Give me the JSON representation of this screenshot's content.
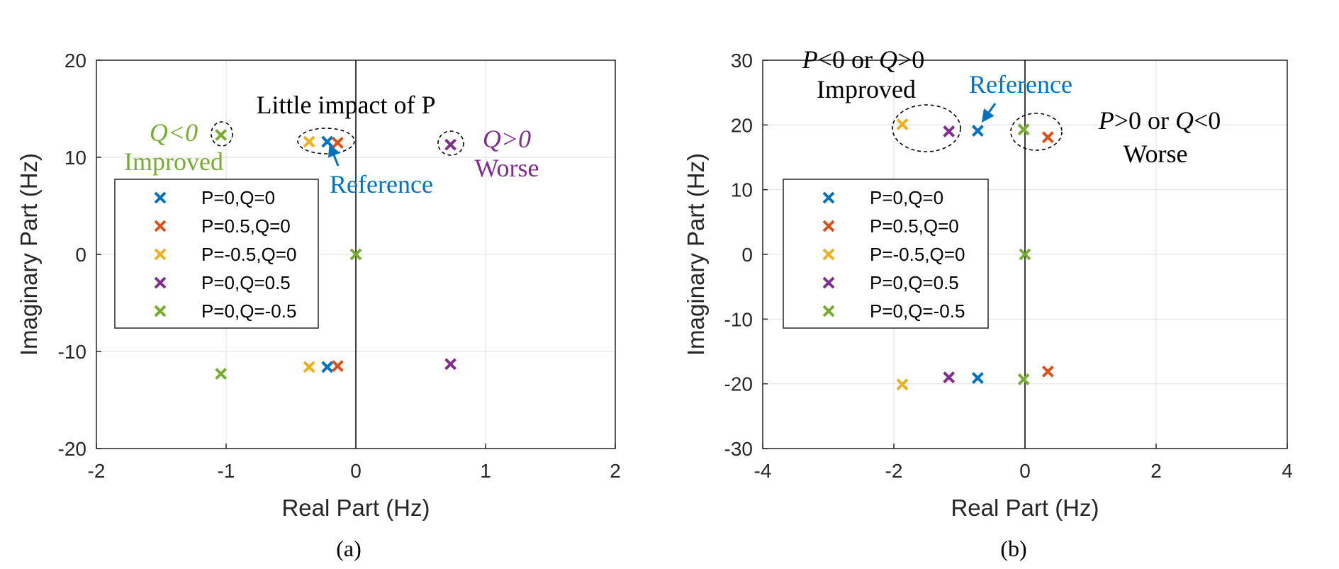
{
  "chart_data": [
    {
      "type": "scatter",
      "caption": "(a)",
      "xlabel": "Real Part (Hz)",
      "ylabel": "Imaginary Part (Hz)",
      "xlim": [
        -2,
        2
      ],
      "ylim": [
        -20,
        20
      ],
      "xticks": [
        "-2",
        "-1",
        "0",
        "1",
        "2"
      ],
      "yticks": [
        "-20",
        "-10",
        "0",
        "10",
        "20"
      ],
      "grid": true,
      "legend_position": "left",
      "series": [
        {
          "name": "P=0,Q=0",
          "color": "#0072BD",
          "points": [
            [
              -0.22,
              11.6
            ],
            [
              -0.22,
              -11.6
            ]
          ]
        },
        {
          "name": "P=0.5,Q=0",
          "color": "#D95319",
          "points": [
            [
              -0.14,
              11.5
            ],
            [
              -0.14,
              -11.5
            ]
          ]
        },
        {
          "name": "P=-0.5,Q=0",
          "color": "#EDB120",
          "points": [
            [
              -0.36,
              11.6
            ],
            [
              -0.36,
              -11.6
            ]
          ]
        },
        {
          "name": "P=0,Q=0.5",
          "color": "#7E2F8E",
          "points": [
            [
              0.73,
              11.3
            ],
            [
              0.73,
              -11.3
            ]
          ]
        },
        {
          "name": "P=0,Q=-0.5",
          "color": "#77AC30",
          "points": [
            [
              -1.04,
              12.3
            ],
            [
              -1.04,
              -12.3
            ],
            [
              0,
              0
            ]
          ]
        }
      ],
      "annotations": {
        "q_neg_line1": "Q<0",
        "q_neg_line2": "Improved",
        "little_impact": "Little impact of P",
        "reference": "Reference",
        "q_pos_line1": "Q>0",
        "q_pos_line2": "Worse"
      }
    },
    {
      "type": "scatter",
      "caption": "(b)",
      "xlabel": "Real Part (Hz)",
      "ylabel": "Imaginary Part (Hz)",
      "xlim": [
        -4,
        4
      ],
      "ylim": [
        -30,
        30
      ],
      "xticks": [
        "-4",
        "-2",
        "0",
        "2",
        "4"
      ],
      "yticks": [
        "-30",
        "-20",
        "-10",
        "0",
        "10",
        "20",
        "30"
      ],
      "grid": true,
      "legend_position": "left",
      "series": [
        {
          "name": "P=0,Q=0",
          "color": "#0072BD",
          "points": [
            [
              -0.72,
              19.1
            ],
            [
              -0.72,
              -19.1
            ]
          ]
        },
        {
          "name": "P=0.5,Q=0",
          "color": "#D95319",
          "points": [
            [
              0.35,
              18.1
            ],
            [
              0.35,
              -18.1
            ]
          ]
        },
        {
          "name": "P=-0.5,Q=0",
          "color": "#EDB120",
          "points": [
            [
              -1.87,
              20.1
            ],
            [
              -1.87,
              -20.1
            ]
          ]
        },
        {
          "name": "P=0,Q=0.5",
          "color": "#7E2F8E",
          "points": [
            [
              -1.16,
              19.0
            ],
            [
              -1.16,
              -19.0
            ]
          ]
        },
        {
          "name": "P=0,Q=-0.5",
          "color": "#77AC30",
          "points": [
            [
              -0.02,
              19.3
            ],
            [
              -0.02,
              -19.3
            ],
            [
              0,
              0
            ]
          ]
        }
      ],
      "annotations": {
        "improved_line1": "P<0 or Q>0",
        "improved_line2": "Improved",
        "reference": "Reference",
        "worse_line1": "P>0 or Q<0",
        "worse_line2": "Worse"
      }
    }
  ]
}
